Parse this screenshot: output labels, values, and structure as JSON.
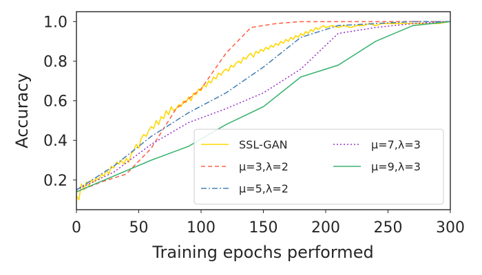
{
  "chart_data": {
    "type": "line",
    "xlabel": "Training epochs performed",
    "ylabel": "Accuracy",
    "xlim": [
      0,
      300
    ],
    "ylim": [
      0.05,
      1.05
    ],
    "xticks": [
      0,
      50,
      100,
      150,
      200,
      250,
      300
    ],
    "yticks": [
      0.2,
      0.4,
      0.6,
      0.8,
      1.0
    ],
    "xtick_labels": [
      "0",
      "50",
      "100",
      "150",
      "200",
      "250",
      "300"
    ],
    "ytick_labels": [
      "0.2",
      "0.4",
      "0.6",
      "0.8",
      "1.0"
    ],
    "grid": false,
    "legend_position": "lower-right",
    "series": [
      {
        "name": "SSL-GAN",
        "legend": "SSL-GAN",
        "color": "#FFD700",
        "dash": "solid",
        "x": [
          0,
          2,
          4,
          6,
          8,
          10,
          12,
          14,
          16,
          18,
          20,
          22,
          24,
          26,
          28,
          30,
          32,
          34,
          36,
          38,
          40,
          42,
          44,
          46,
          48,
          50,
          52,
          54,
          56,
          58,
          60,
          62,
          64,
          66,
          68,
          70,
          72,
          74,
          76,
          78,
          80,
          82,
          84,
          86,
          88,
          90,
          92,
          94,
          96,
          98,
          100,
          102,
          104,
          106,
          108,
          110,
          112,
          114,
          116,
          118,
          120,
          122,
          124,
          126,
          128,
          130,
          132,
          134,
          136,
          138,
          140,
          142,
          144,
          146,
          148,
          150,
          152,
          154,
          156,
          158,
          160,
          162,
          164,
          166,
          168,
          170,
          172,
          174,
          176,
          178,
          180,
          182,
          184,
          186,
          188,
          190,
          192,
          194,
          196,
          198,
          200,
          205,
          210,
          215,
          220,
          225,
          230,
          235,
          240,
          245,
          250,
          260,
          270,
          280,
          290,
          300
        ],
        "values": [
          0.12,
          0.1,
          0.18,
          0.15,
          0.19,
          0.17,
          0.2,
          0.19,
          0.21,
          0.2,
          0.23,
          0.22,
          0.25,
          0.23,
          0.27,
          0.26,
          0.29,
          0.28,
          0.3,
          0.28,
          0.31,
          0.29,
          0.33,
          0.35,
          0.38,
          0.36,
          0.41,
          0.43,
          0.42,
          0.45,
          0.47,
          0.46,
          0.5,
          0.48,
          0.52,
          0.51,
          0.55,
          0.53,
          0.57,
          0.55,
          0.56,
          0.58,
          0.57,
          0.6,
          0.59,
          0.62,
          0.6,
          0.64,
          0.63,
          0.66,
          0.65,
          0.68,
          0.67,
          0.7,
          0.69,
          0.72,
          0.71,
          0.74,
          0.73,
          0.75,
          0.76,
          0.75,
          0.78,
          0.77,
          0.79,
          0.8,
          0.79,
          0.82,
          0.81,
          0.83,
          0.84,
          0.82,
          0.85,
          0.84,
          0.86,
          0.85,
          0.87,
          0.86,
          0.88,
          0.87,
          0.89,
          0.88,
          0.9,
          0.89,
          0.91,
          0.9,
          0.92,
          0.91,
          0.93,
          0.92,
          0.94,
          0.93,
          0.95,
          0.94,
          0.96,
          0.95,
          0.97,
          0.96,
          0.97,
          0.98,
          0.97,
          0.98,
          0.97,
          0.98,
          0.97,
          0.98,
          0.98,
          0.99,
          0.98,
          0.99,
          0.99,
          0.99,
          0.99,
          0.99,
          0.99,
          1.0
        ]
      },
      {
        "name": "mu3_lambda2",
        "legend": "μ=3,λ=2",
        "color": "#FF6347",
        "dash": "6,4",
        "x": [
          0,
          20,
          40,
          60,
          80,
          100,
          120,
          140,
          160,
          180,
          200,
          220,
          240,
          260,
          280,
          300
        ],
        "values": [
          0.14,
          0.19,
          0.23,
          0.36,
          0.56,
          0.66,
          0.84,
          0.97,
          0.99,
          1.0,
          1.0,
          1.0,
          1.0,
          1.0,
          1.0,
          1.0
        ]
      },
      {
        "name": "mu5_lambda2",
        "legend": "μ=5,λ=2",
        "color": "#4682B4",
        "dash": "8,3,2,3",
        "x": [
          0,
          30,
          60,
          90,
          120,
          150,
          180,
          210,
          240,
          270,
          300
        ],
        "values": [
          0.15,
          0.27,
          0.42,
          0.54,
          0.64,
          0.77,
          0.92,
          0.98,
          0.99,
          1.0,
          1.0
        ]
      },
      {
        "name": "mu7_lambda3",
        "legend": "μ=7,λ=3",
        "color": "#9932CC",
        "dash": "2,3",
        "x": [
          0,
          30,
          60,
          90,
          120,
          150,
          180,
          210,
          240,
          270,
          300
        ],
        "values": [
          0.15,
          0.24,
          0.38,
          0.49,
          0.56,
          0.64,
          0.76,
          0.94,
          0.97,
          0.99,
          1.0
        ]
      },
      {
        "name": "mu9_lambda3",
        "legend": "μ=9,λ=3",
        "color": "#3CB371",
        "dash": "solid",
        "x": [
          0,
          30,
          60,
          90,
          120,
          150,
          180,
          210,
          240,
          270,
          300
        ],
        "values": [
          0.14,
          0.22,
          0.3,
          0.37,
          0.48,
          0.57,
          0.72,
          0.78,
          0.9,
          0.98,
          1.0
        ]
      }
    ]
  }
}
